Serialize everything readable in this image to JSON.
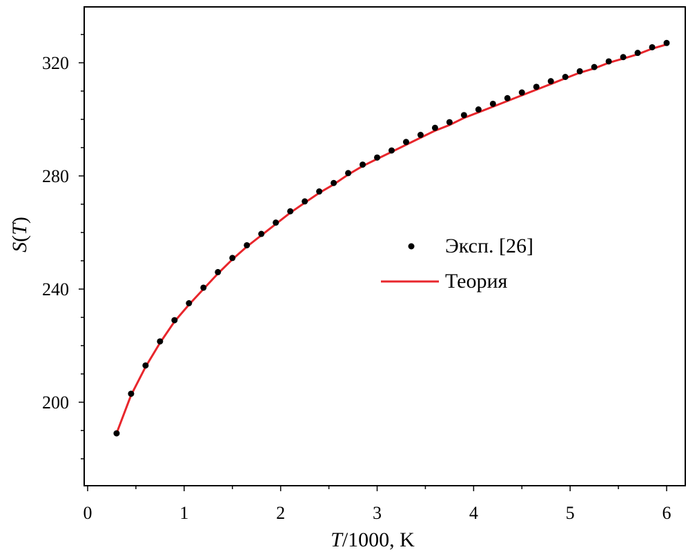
{
  "chart_data": {
    "type": "scatter",
    "xlabel_italic": "T",
    "xlabel_rest": "/1000, K",
    "ylabel_italic_S": "S",
    "ylabel_open": "(",
    "ylabel_italic_T": "T",
    "ylabel_close": ")",
    "xlim": [
      0,
      6.2
    ],
    "ylim": [
      170,
      340
    ],
    "x_ticks": [
      0,
      1,
      2,
      3,
      4,
      5,
      6
    ],
    "y_ticks": [
      200,
      240,
      280,
      320
    ],
    "grid": false,
    "legend_position": "center-right",
    "series": [
      {
        "name": "Эксп. [26]",
        "kind": "points",
        "color": "#000000",
        "x": [
          0.3,
          0.45,
          0.6,
          0.75,
          0.9,
          1.05,
          1.2,
          1.35,
          1.5,
          1.65,
          1.8,
          1.95,
          2.1,
          2.25,
          2.4,
          2.55,
          2.7,
          2.85,
          3.0,
          3.15,
          3.3,
          3.45,
          3.6,
          3.75,
          3.9,
          4.05,
          4.2,
          4.35,
          4.5,
          4.65,
          4.8,
          4.95,
          5.1,
          5.25,
          5.4,
          5.55,
          5.7,
          5.85,
          6.0
        ],
        "y": [
          189,
          203,
          213,
          221.5,
          229,
          235,
          240.5,
          246,
          251,
          255.5,
          259.5,
          263.5,
          267.5,
          271,
          274.5,
          277.5,
          281,
          284,
          286.5,
          289,
          292,
          294.5,
          297,
          299,
          301.5,
          303.5,
          305.5,
          307.5,
          309.5,
          311.5,
          313.5,
          315,
          317,
          318.5,
          320.5,
          322,
          323.5,
          325.5,
          327
        ]
      },
      {
        "name": "Теория",
        "kind": "line",
        "color": "#e8262c",
        "x": [
          0.3,
          0.45,
          0.6,
          0.75,
          0.9,
          1.05,
          1.2,
          1.35,
          1.5,
          1.65,
          1.8,
          1.95,
          2.1,
          2.25,
          2.4,
          2.55,
          2.7,
          2.85,
          3.0,
          3.15,
          3.3,
          3.45,
          3.6,
          3.75,
          3.9,
          4.05,
          4.2,
          4.35,
          4.5,
          4.65,
          4.8,
          4.95,
          5.1,
          5.25,
          5.4,
          5.55,
          5.7,
          5.85,
          6.0
        ],
        "y": [
          189,
          202.5,
          212.5,
          221,
          228.5,
          234.5,
          240,
          245.5,
          250.5,
          255,
          259,
          263,
          267,
          270.5,
          274,
          277,
          280.5,
          283.5,
          286,
          288.5,
          291,
          293.5,
          296,
          298,
          300.5,
          302.5,
          304.5,
          306.5,
          308.5,
          310.5,
          312.5,
          314.5,
          316.5,
          318,
          320,
          321.5,
          323,
          325,
          326.5
        ]
      }
    ]
  },
  "colors": {
    "axis": "#000000",
    "background": "#ffffff"
  }
}
